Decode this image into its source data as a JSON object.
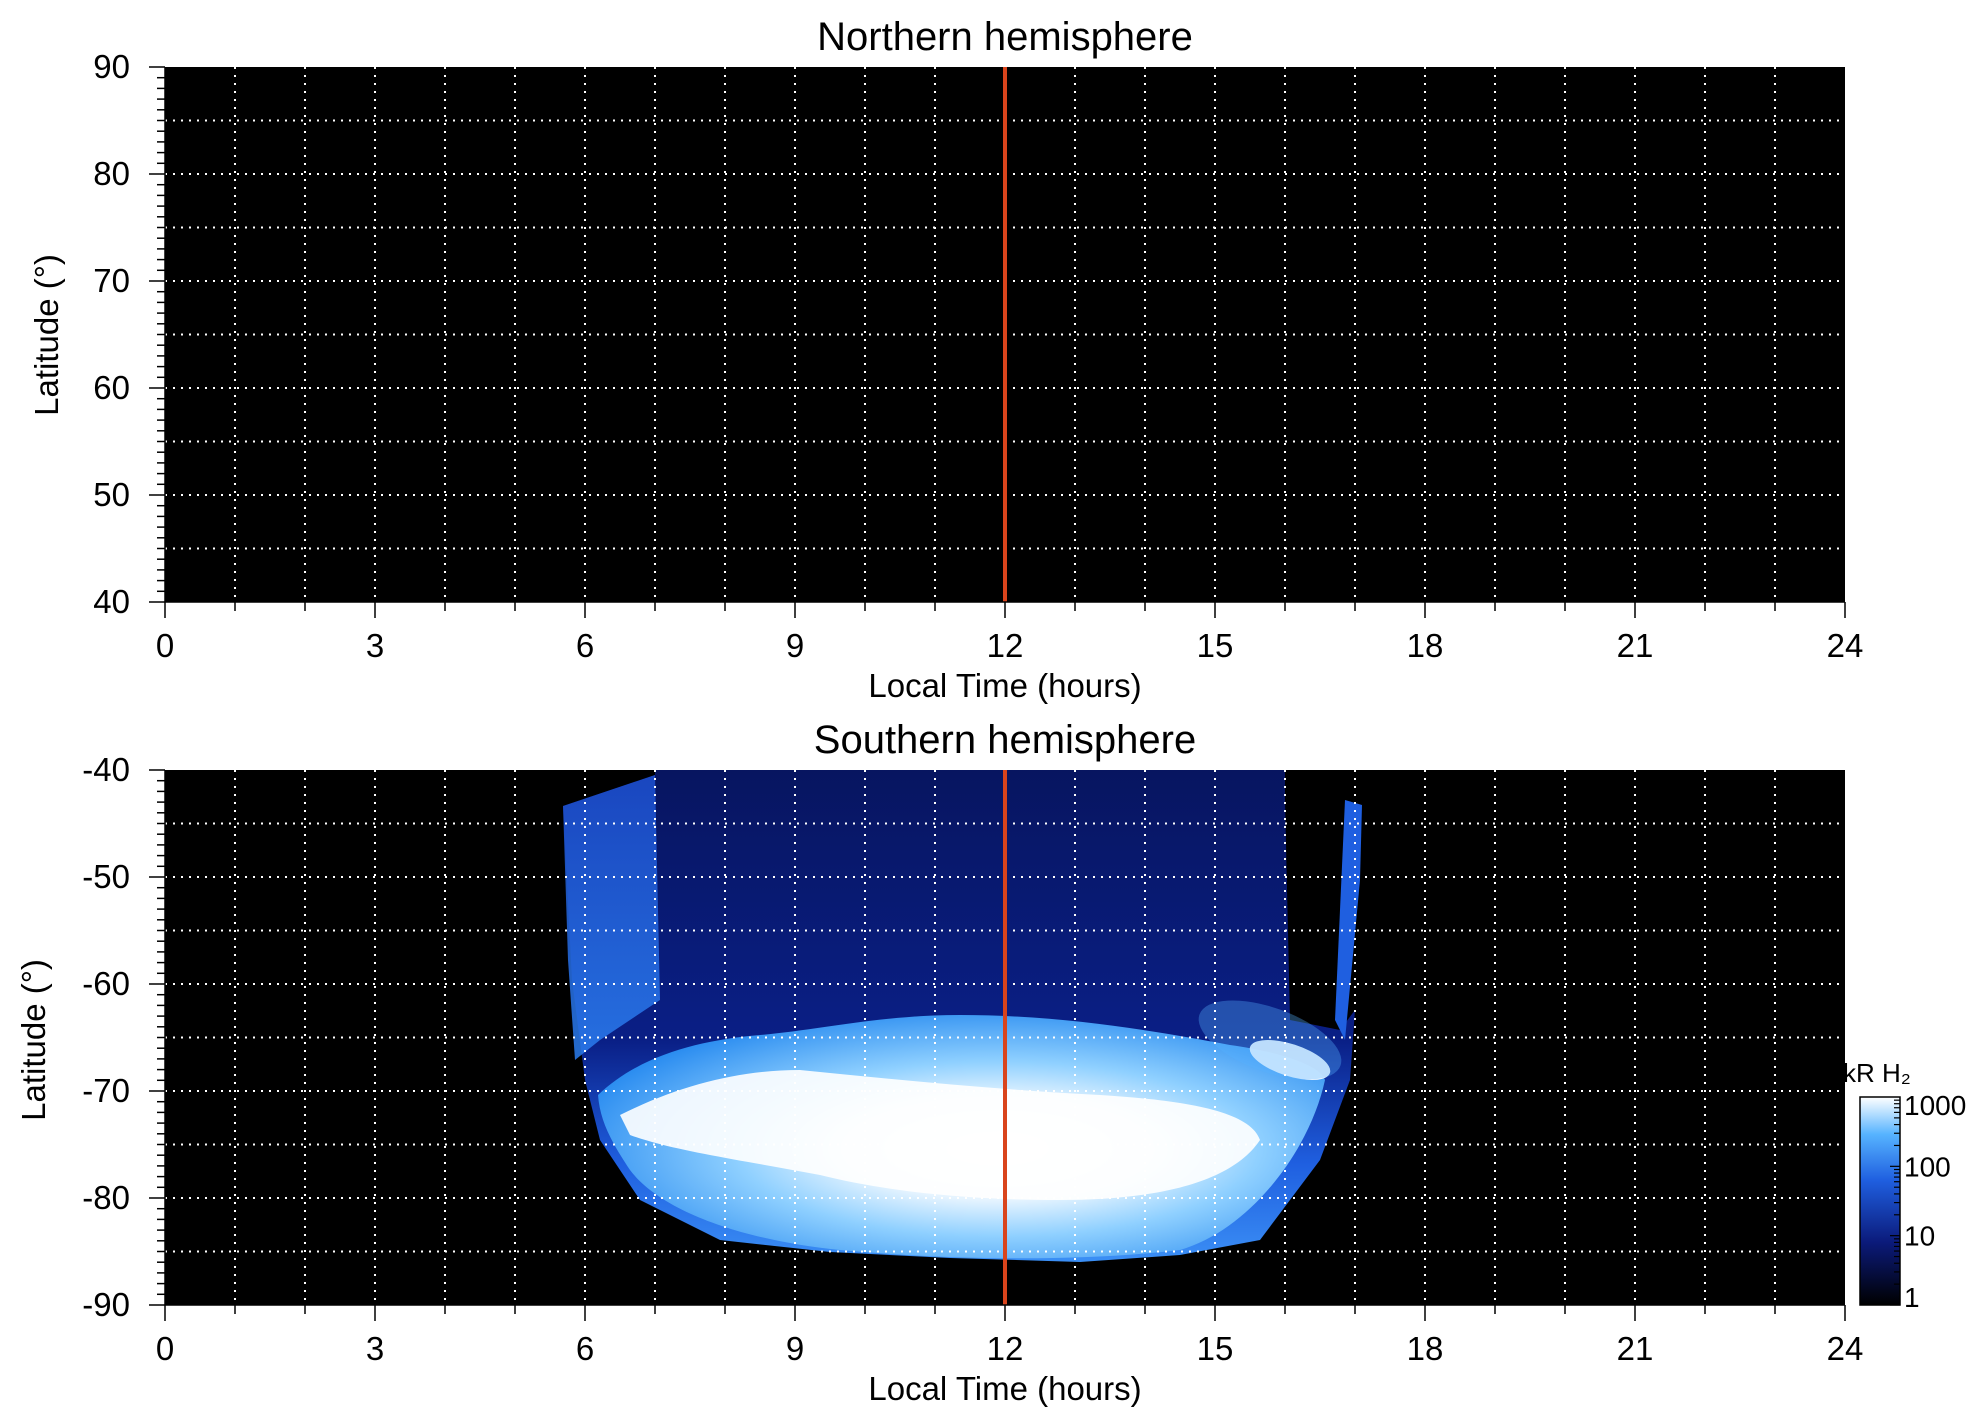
{
  "colors": {
    "background": "#000000",
    "grid": "#ffffff",
    "noon_line": "#d9441c",
    "colormap": [
      "#000000",
      "#0b1a7a",
      "#1f5fe0",
      "#56b3ff",
      "#ffffff"
    ]
  },
  "chart_data": [
    {
      "type": "heatmap",
      "title": "Northern hemisphere",
      "xlabel": "Local Time (hours)",
      "ylabel": "Latitude (°)",
      "xlim": [
        0,
        24
      ],
      "ylim": [
        40,
        90
      ],
      "xticks": [
        "0",
        "3",
        "6",
        "9",
        "12",
        "15",
        "18",
        "21",
        "24"
      ],
      "yticks": [
        "90",
        "80",
        "70",
        "60",
        "50",
        "40"
      ],
      "grid": true,
      "reference_line_x": 12,
      "emission": []
    },
    {
      "type": "heatmap",
      "title": "Southern hemisphere",
      "xlabel": "Local Time (hours)",
      "ylabel": "Latitude (°)",
      "xlim": [
        0,
        24
      ],
      "ylim": [
        -90,
        -40
      ],
      "xticks": [
        "0",
        "3",
        "6",
        "9",
        "12",
        "15",
        "18",
        "21",
        "24"
      ],
      "yticks": [
        "-40",
        "-50",
        "-60",
        "-70",
        "-80",
        "-90"
      ],
      "grid": true,
      "reference_line_x": 12,
      "emission_coverage_lt": [
        5.8,
        17.1
      ],
      "emission_coverage_lat": [
        -86.5,
        -40
      ],
      "auroral_oval_peak_lat": [
        -72,
        -78
      ]
    }
  ],
  "colorbar": {
    "title": "kR H₂",
    "scale": "log",
    "range": [
      1,
      1000
    ],
    "ticks": [
      "1000",
      "100",
      "10",
      "1"
    ]
  }
}
